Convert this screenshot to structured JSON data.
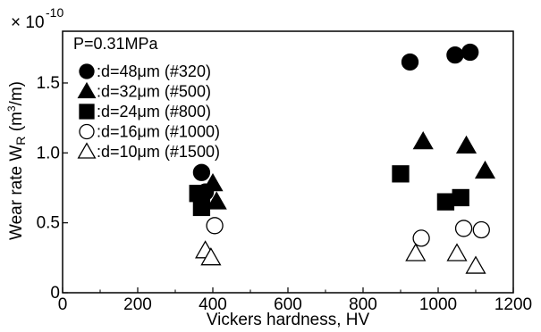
{
  "chart_data": {
    "type": "scatter",
    "scale_label": {
      "base": "× 10",
      "exponent": "-10"
    },
    "xlabel": "Vickers hardness, HV",
    "ylabel": {
      "main": "Wear rate W",
      "sub": "R",
      "unit_open": " (m",
      "unit_exp": "3",
      "unit_close": "/m)"
    },
    "xlim": [
      0,
      1200
    ],
    "ylim": [
      0,
      2.0
    ],
    "x_ticks": [
      0,
      200,
      400,
      600,
      800,
      1000,
      1200
    ],
    "y_ticks": [
      0,
      0.5,
      1.0,
      1.5
    ],
    "x_tick_labels": [
      "0",
      "200",
      "400",
      "600",
      "800",
      "1000",
      "1200"
    ],
    "y_tick_labels": [
      "0",
      "0.5",
      "1.0",
      "1.5"
    ],
    "grid": false,
    "legend_position": "top-left",
    "legend_title": "P=0.31MPa",
    "series": [
      {
        "name": ":d=48μm (#320)",
        "marker": "circle",
        "filled": true,
        "points": [
          [
            370,
            0.86
          ],
          [
            380,
            0.72
          ],
          [
            925,
            1.65
          ],
          [
            1045,
            1.7
          ],
          [
            1085,
            1.72
          ]
        ]
      },
      {
        "name": ":d=32μm (#500)",
        "marker": "triangle",
        "filled": true,
        "points": [
          [
            400,
            0.78
          ],
          [
            410,
            0.65
          ],
          [
            960,
            1.08
          ],
          [
            1075,
            1.05
          ],
          [
            1125,
            0.87
          ]
        ]
      },
      {
        "name": ":d=24μm (#800)",
        "marker": "square",
        "filled": true,
        "points": [
          [
            360,
            0.71
          ],
          [
            370,
            0.61
          ],
          [
            900,
            0.85
          ],
          [
            1020,
            0.65
          ],
          [
            1060,
            0.68
          ]
        ]
      },
      {
        "name": ":d=16μm (#1000)",
        "marker": "circle",
        "filled": false,
        "points": [
          [
            405,
            0.48
          ],
          [
            955,
            0.39
          ],
          [
            1068,
            0.46
          ],
          [
            1115,
            0.45
          ]
        ]
      },
      {
        "name": ":d=10μm (#1500)",
        "marker": "triangle",
        "filled": false,
        "points": [
          [
            380,
            0.3
          ],
          [
            395,
            0.25
          ],
          [
            940,
            0.28
          ],
          [
            1050,
            0.28
          ],
          [
            1100,
            0.19
          ]
        ]
      }
    ]
  }
}
